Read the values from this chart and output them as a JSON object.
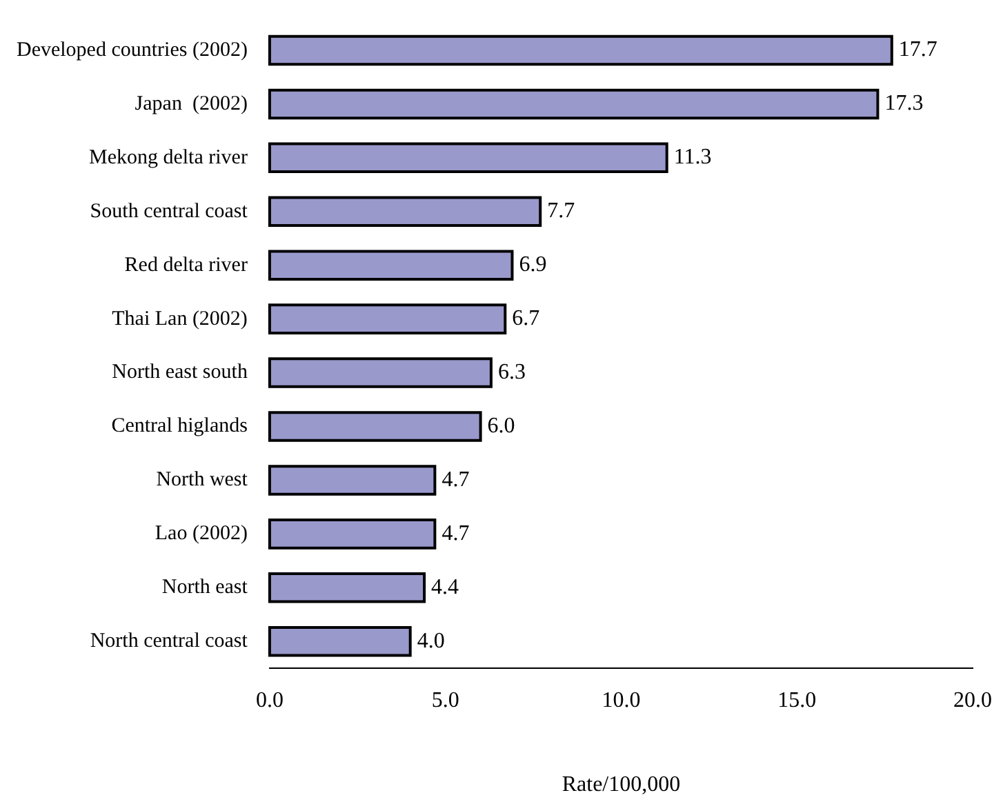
{
  "chart_data": {
    "type": "bar",
    "orientation": "horizontal",
    "xlabel": "Rate/100,000",
    "categories": [
      "Developed countries (2002)",
      "Japan  (2002)",
      "Mekong delta river",
      "South central coast",
      "Red delta river",
      "Thai Lan (2002)",
      "North east south",
      "Central higlands",
      "North west",
      "Lao (2002)",
      "North east",
      "North central coast"
    ],
    "values": [
      17.7,
      17.3,
      11.3,
      7.7,
      6.9,
      6.7,
      6.3,
      6.0,
      4.7,
      4.7,
      4.4,
      4.0
    ],
    "value_labels": [
      "17.7",
      "17.3",
      "11.3",
      "7.7",
      "6.9",
      "6.7",
      "6.3",
      "6.0",
      "4.7",
      "4.7",
      "4.4",
      "4.0"
    ],
    "color": "#9999cc",
    "xlim": [
      0,
      20
    ],
    "xticks": [
      {
        "value": 0,
        "label": "0.0"
      },
      {
        "value": 5,
        "label": "5.0"
      },
      {
        "value": 10,
        "label": "10.0"
      },
      {
        "value": 15,
        "label": "15.0"
      },
      {
        "value": 20,
        "label": "20.0"
      }
    ],
    "grid": false,
    "legend": false
  }
}
